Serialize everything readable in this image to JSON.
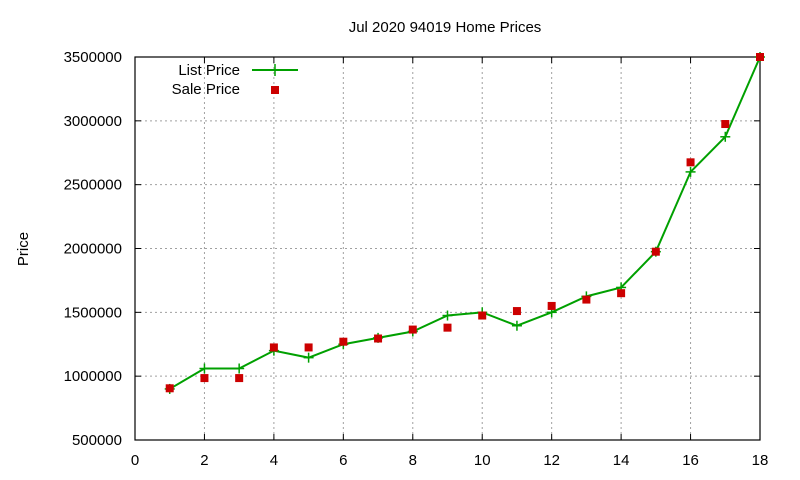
{
  "chart_data": {
    "type": "line",
    "title": "Jul 2020 94019 Home Prices",
    "xlabel": "",
    "ylabel": "Price",
    "xlim": [
      0,
      18
    ],
    "ylim": [
      500000,
      3500000
    ],
    "x_ticks": [
      0,
      2,
      4,
      6,
      8,
      10,
      12,
      14,
      16,
      18
    ],
    "y_ticks": [
      500000,
      1000000,
      1500000,
      2000000,
      2500000,
      3000000,
      3500000
    ],
    "grid": true,
    "legend_position": "top-left",
    "x": [
      1,
      2,
      3,
      4,
      5,
      6,
      7,
      8,
      9,
      10,
      11,
      12,
      13,
      14,
      15,
      16,
      17,
      18
    ],
    "series": [
      {
        "name": "List Price",
        "style": "line-with-plus-markers",
        "color": "#00a000",
        "values": [
          900000,
          1060000,
          1060000,
          1200000,
          1145000,
          1250000,
          1300000,
          1350000,
          1475000,
          1500000,
          1395000,
          1500000,
          1625000,
          1695000,
          1975000,
          2600000,
          2875000,
          3500000
        ]
      },
      {
        "name": "Sale Price",
        "style": "square-markers",
        "color": "#cc0000",
        "values": [
          905000,
          985000,
          985000,
          1225000,
          1225000,
          1270000,
          1295000,
          1365000,
          1380000,
          1475000,
          1510000,
          1550000,
          1600000,
          1650000,
          1975000,
          2675000,
          2975000,
          3500000
        ]
      }
    ]
  }
}
